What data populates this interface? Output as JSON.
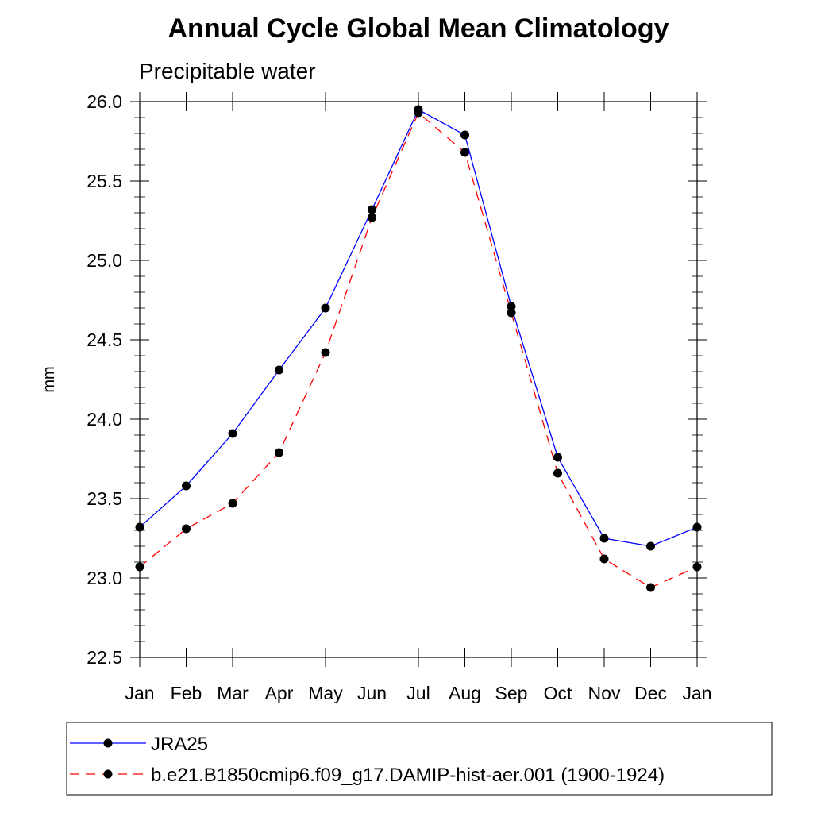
{
  "chart_data": {
    "type": "line",
    "title": "Annual Cycle Global Mean Climatology",
    "subtitle": "Precipitable water",
    "xlabel": "",
    "ylabel": "mm",
    "categories": [
      "Jan",
      "Feb",
      "Mar",
      "Apr",
      "May",
      "Jun",
      "Jul",
      "Aug",
      "Sep",
      "Oct",
      "Nov",
      "Dec",
      "Jan"
    ],
    "ylim": [
      22.5,
      26.0
    ],
    "yticks": [
      "22.5",
      "23.0",
      "23.5",
      "24.0",
      "24.5",
      "25.0",
      "25.5",
      "26.0"
    ],
    "grid": false,
    "legend_position": "bottom",
    "series": [
      {
        "name": "JRA25",
        "color": "#0000ff",
        "line_style": "solid",
        "marker": "filled-circle",
        "values": [
          23.32,
          23.58,
          23.91,
          24.31,
          24.7,
          25.32,
          25.95,
          25.79,
          24.71,
          23.76,
          23.25,
          23.2,
          23.32
        ]
      },
      {
        "name": "b.e21.B1850cmip6.f09_g17.DAMIP-hist-aer.001 (1900-1924)",
        "color": "#ff0000",
        "line_style": "dashed",
        "marker": "filled-circle",
        "values": [
          23.07,
          23.31,
          23.47,
          23.79,
          24.42,
          25.27,
          25.93,
          25.68,
          24.67,
          23.66,
          23.12,
          22.94,
          23.07
        ]
      }
    ]
  }
}
